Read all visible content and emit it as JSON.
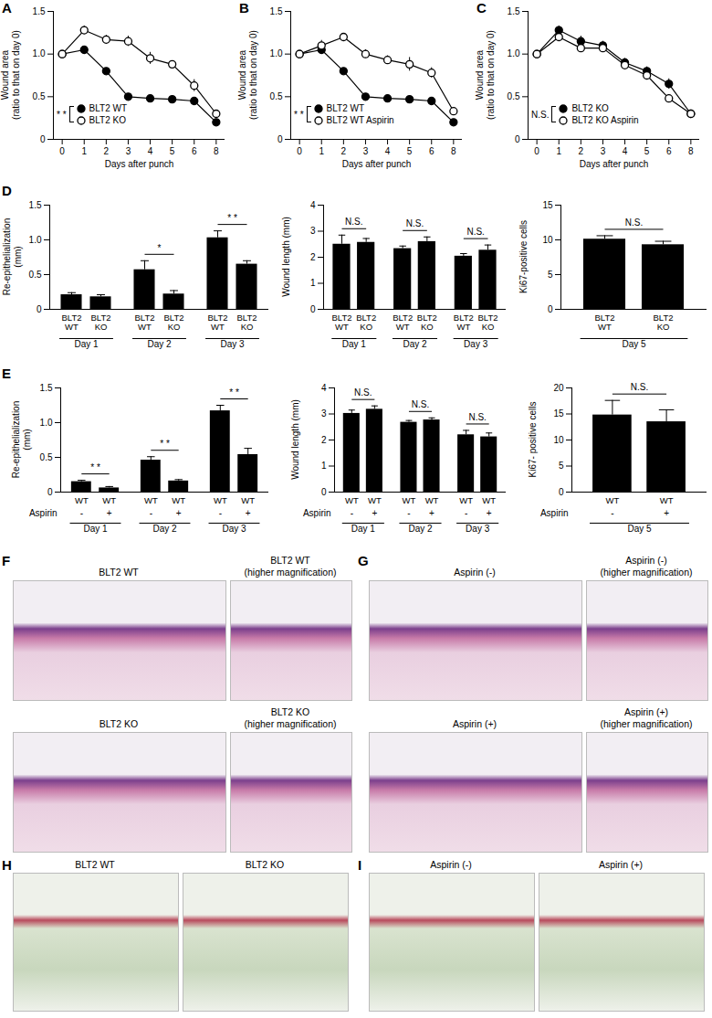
{
  "chart_data": [
    {
      "panel": "A",
      "type": "line",
      "ylabel": "Wound area",
      "ylabel2": "(ratio to that on day 0)",
      "xlabel": "Days after punch",
      "categories": [
        "0",
        "1",
        "2",
        "3",
        "4",
        "5",
        "6",
        "8"
      ],
      "ylim": [
        0,
        1.5
      ],
      "yticks": [
        0,
        0.5,
        {
          "value": 1,
          "label": "1.0"
        },
        1.5
      ],
      "significance": "* *",
      "series": [
        {
          "name": "BLT2 WT",
          "color": "#000000",
          "marker": "filled",
          "values": [
            1.0,
            1.05,
            0.8,
            0.5,
            0.48,
            0.47,
            0.45,
            0.2
          ],
          "errors": [
            0.01,
            0.02,
            0.02,
            0.02,
            0.02,
            0.02,
            0.02,
            0.02
          ]
        },
        {
          "name": "BLT2 KO",
          "color": "#000000",
          "marker": "open",
          "values": [
            1.0,
            1.28,
            1.17,
            1.15,
            0.95,
            0.88,
            0.63,
            0.3
          ],
          "errors": [
            0.01,
            0.05,
            0.05,
            0.06,
            0.07,
            0.04,
            0.07,
            0.03
          ]
        }
      ]
    },
    {
      "panel": "B",
      "type": "line",
      "ylabel": "Wound area",
      "ylabel2": "(ratio to that on day 0)",
      "xlabel": "Days after punch",
      "categories": [
        "0",
        "1",
        "2",
        "3",
        "4",
        "5",
        "6",
        "8"
      ],
      "ylim": [
        0,
        1.5
      ],
      "yticks": [
        0,
        0.5,
        {
          "value": 1,
          "label": "1.0"
        },
        1.5
      ],
      "significance": "* *",
      "series": [
        {
          "name": "BLT2 WT",
          "color": "#000000",
          "marker": "filled",
          "values": [
            1.0,
            1.05,
            0.8,
            0.5,
            0.48,
            0.47,
            0.45,
            0.2
          ],
          "errors": [
            0.01,
            0.02,
            0.02,
            0.02,
            0.02,
            0.02,
            0.02,
            0.02
          ]
        },
        {
          "name": "BLT2 WT Aspirin",
          "color": "#000000",
          "marker": "open",
          "values": [
            1.0,
            1.1,
            1.2,
            1.0,
            0.93,
            0.88,
            0.78,
            0.33
          ],
          "errors": [
            0.01,
            0.06,
            0.03,
            0.05,
            0.05,
            0.08,
            0.06,
            0.03
          ]
        }
      ]
    },
    {
      "panel": "C",
      "type": "line",
      "ylabel": "Wound area",
      "ylabel2": "(ratio to that on day 0)",
      "xlabel": "Days after punch",
      "categories": [
        "0",
        "1",
        "2",
        "3",
        "4",
        "5",
        "6",
        "8"
      ],
      "ylim": [
        0,
        1.5
      ],
      "yticks": [
        0,
        0.5,
        {
          "value": 1,
          "label": "1.0"
        },
        1.5
      ],
      "significance": "N.S.",
      "series": [
        {
          "name": "BLT2 KO",
          "color": "#000000",
          "marker": "filled",
          "values": [
            1.0,
            1.28,
            1.15,
            1.1,
            0.9,
            0.8,
            0.65,
            0.3
          ],
          "errors": [
            0.01,
            0.05,
            0.06,
            0.05,
            0.05,
            0.05,
            0.06,
            0.03
          ]
        },
        {
          "name": "BLT2 KO Aspirin",
          "color": "#000000",
          "marker": "open",
          "values": [
            1.0,
            1.2,
            1.07,
            1.07,
            0.87,
            0.75,
            0.48,
            0.3
          ],
          "errors": [
            0.01,
            0.04,
            0.04,
            0.05,
            0.04,
            0.05,
            0.04,
            0.03
          ]
        }
      ]
    },
    {
      "panel": "D",
      "type": "bar",
      "ylabel": "Re-epithelialization",
      "ylabel2": "(mm)",
      "categories": [
        "BLT2 WT",
        "BLT2 KO",
        "BLT2 WT",
        "BLT2 KO",
        "BLT2 WT",
        "BLT2 KO"
      ],
      "groups": [
        "Day 1",
        "Day 1",
        "Day 2",
        "Day 2",
        "Day 3",
        "Day 3"
      ],
      "values": [
        0.21,
        0.18,
        0.57,
        0.22,
        1.03,
        0.65
      ],
      "errors": [
        0.03,
        0.03,
        0.13,
        0.05,
        0.1,
        0.05
      ],
      "significance": [
        null,
        "*",
        "* *"
      ],
      "ylim": [
        0,
        1.5
      ],
      "yticks": [
        0,
        0.5,
        {
          "value": 1,
          "label": "1.0"
        },
        1.5
      ],
      "color": "#000000"
    },
    {
      "type": "bar",
      "ylabel": "Wound length (mm)",
      "categories": [
        "BLT2 WT",
        "BLT2 KO",
        "BLT2 WT",
        "BLT2 KO",
        "BLT2 WT",
        "BLT2 KO"
      ],
      "groups": [
        "Day 1",
        "Day 1",
        "Day 2",
        "Day 2",
        "Day 3",
        "Day 3"
      ],
      "values": [
        2.5,
        2.57,
        2.33,
        2.6,
        2.04,
        2.27
      ],
      "errors": [
        0.35,
        0.15,
        0.1,
        0.18,
        0.1,
        0.2
      ],
      "significance": [
        "N.S.",
        "N.S.",
        "N.S."
      ],
      "ylim": [
        0,
        4
      ],
      "yticks": [
        0,
        1,
        2,
        3,
        4
      ],
      "color": "#000000"
    },
    {
      "type": "bar",
      "ylabel": "Ki67-positive cells",
      "categories": [
        "BLT2 WT",
        "BLT2 KO"
      ],
      "groups": [
        "Day 5",
        "Day 5"
      ],
      "values": [
        10.1,
        9.3
      ],
      "errors": [
        0.5,
        0.5
      ],
      "significance": [
        "N.S."
      ],
      "ylim": [
        0,
        15
      ],
      "yticks": [
        0,
        5,
        10,
        15
      ],
      "color": "#000000"
    },
    {
      "panel": "E",
      "type": "bar",
      "ylabel": "Re-epithelialization",
      "ylabel2": "(mm)",
      "categories": [
        "WT",
        "WT",
        "WT",
        "WT",
        "WT",
        "WT"
      ],
      "row_label": "Aspirin",
      "aspirin": [
        "-",
        "+",
        "-",
        "+",
        "-",
        "+"
      ],
      "groups": [
        "Day 1",
        "Day 1",
        "Day 2",
        "Day 2",
        "Day 3",
        "Day 3"
      ],
      "values": [
        0.15,
        0.06,
        0.46,
        0.16,
        1.17,
        0.54
      ],
      "errors": [
        0.02,
        0.02,
        0.05,
        0.02,
        0.08,
        0.09
      ],
      "significance": [
        "* *",
        "* *",
        "* *"
      ],
      "ylim": [
        0,
        1.5
      ],
      "yticks": [
        0,
        0.5,
        {
          "value": 1,
          "label": "1.0"
        },
        1.5
      ],
      "color": "#000000"
    },
    {
      "type": "bar",
      "ylabel": "Wound length (mm)",
      "categories": [
        "WT",
        "WT",
        "WT",
        "WT",
        "WT",
        "WT"
      ],
      "row_label": "Aspirin",
      "aspirin": [
        "-",
        "+",
        "-",
        "+",
        "-",
        "+"
      ],
      "groups": [
        "Day 1",
        "Day 1",
        "Day 2",
        "Day 2",
        "Day 3",
        "Day 3"
      ],
      "values": [
        3.02,
        3.18,
        2.68,
        2.77,
        2.2,
        2.12
      ],
      "errors": [
        0.13,
        0.13,
        0.07,
        0.08,
        0.17,
        0.15
      ],
      "significance": [
        "N.S.",
        "N.S.",
        "N.S."
      ],
      "ylim": [
        0,
        4
      ],
      "yticks": [
        0,
        1,
        2,
        3,
        4
      ],
      "color": "#000000"
    },
    {
      "type": "bar",
      "ylabel": "Ki67- positive cells",
      "categories": [
        "WT",
        "WT"
      ],
      "row_label": "Aspirin",
      "aspirin": [
        "-",
        "+"
      ],
      "groups": [
        "Day 5",
        "Day 5"
      ],
      "values": [
        14.8,
        13.5
      ],
      "errors": [
        2.8,
        2.3
      ],
      "significance": [
        "N.S."
      ],
      "ylim": [
        0,
        20
      ],
      "yticks": [
        0,
        5,
        10,
        15,
        20
      ],
      "color": "#000000"
    }
  ],
  "images": [
    {
      "panel": "F",
      "frames": [
        {
          "label": "BLT2 WT"
        },
        {
          "label": "BLT2 WT",
          "sublabel": "(higher magnification)"
        },
        {
          "label": "BLT2 KO"
        },
        {
          "label": "BLT2 KO",
          "sublabel": "(higher magnification)"
        }
      ]
    },
    {
      "panel": "G",
      "frames": [
        {
          "label": "Aspirin (-)"
        },
        {
          "label": "Aspirin (-)",
          "sublabel": "(higher magnification)"
        },
        {
          "label": "Aspirin (+)"
        },
        {
          "label": "Aspirin (+)",
          "sublabel": "(higher magnification)"
        }
      ]
    },
    {
      "panel": "H",
      "frames": [
        {
          "label": "BLT2 WT"
        },
        {
          "label": "BLT2 KO"
        }
      ]
    },
    {
      "panel": "I",
      "frames": [
        {
          "label": "Aspirin (-)"
        },
        {
          "label": "Aspirin (+)"
        }
      ]
    }
  ]
}
